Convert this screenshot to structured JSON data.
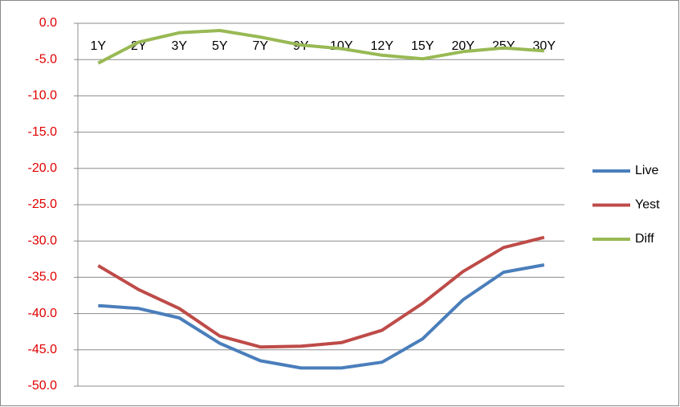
{
  "chart_data": {
    "type": "line",
    "categories": [
      "1Y",
      "2Y",
      "3Y",
      "5Y",
      "7Y",
      "9Y",
      "10Y",
      "12Y",
      "15Y",
      "20Y",
      "25Y",
      "30Y"
    ],
    "series": [
      {
        "name": "Live",
        "color": "#4a7ebb",
        "values": [
          -38.9,
          -39.3,
          -40.6,
          -44.1,
          -46.5,
          -47.5,
          -47.5,
          -46.7,
          -43.5,
          -38.1,
          -34.3,
          -33.3
        ]
      },
      {
        "name": "Yest",
        "color": "#be4b48",
        "values": [
          -33.4,
          -36.7,
          -39.3,
          -43.1,
          -44.6,
          -44.5,
          -44.0,
          -42.3,
          -38.6,
          -34.2,
          -30.9,
          -29.5
        ]
      },
      {
        "name": "Diff",
        "color": "#98b954",
        "values": [
          -5.5,
          -2.6,
          -1.3,
          -1.0,
          -1.9,
          -3.0,
          -3.5,
          -4.4,
          -4.9,
          -3.9,
          -3.4,
          -3.8
        ]
      }
    ],
    "ylim": [
      -50,
      0
    ],
    "yticks": [
      {
        "value": 0,
        "label": "0.0"
      },
      {
        "value": -5,
        "label": "-5.0"
      },
      {
        "value": -10,
        "label": "-10.0"
      },
      {
        "value": -15,
        "label": "-15.0"
      },
      {
        "value": -20,
        "label": "-20.0"
      },
      {
        "value": -25,
        "label": "-25.0"
      },
      {
        "value": -30,
        "label": "-30.0"
      },
      {
        "value": -35,
        "label": "-35.0"
      },
      {
        "value": -40,
        "label": "-40.0"
      },
      {
        "value": -45,
        "label": "-45.0"
      },
      {
        "value": -50,
        "label": "-50.0"
      }
    ],
    "grid": true,
    "legend": "right"
  }
}
